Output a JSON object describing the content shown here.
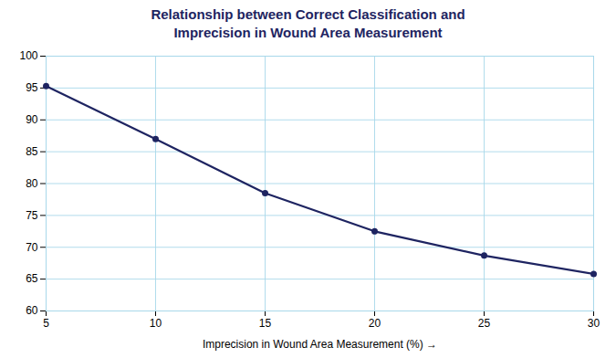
{
  "chart_data": {
    "type": "line",
    "title": "Relationship between Correct Classification and\nImprecision in Wound Area Measurement",
    "xlabel": "Imprecision in Wound Area Measurement (%)",
    "x": [
      5,
      10,
      15,
      20,
      25,
      30
    ],
    "values": [
      95.3,
      87.0,
      78.5,
      72.5,
      68.7,
      65.8
    ],
    "color": "#1e2461",
    "marker": "o",
    "xlim": [
      5,
      30
    ],
    "ylim": [
      60,
      100
    ],
    "xticks": [
      5,
      10,
      15,
      20,
      25,
      30
    ],
    "yticks": [
      60,
      65,
      70,
      75,
      80,
      85,
      90,
      95,
      100
    ],
    "grid": true
  }
}
